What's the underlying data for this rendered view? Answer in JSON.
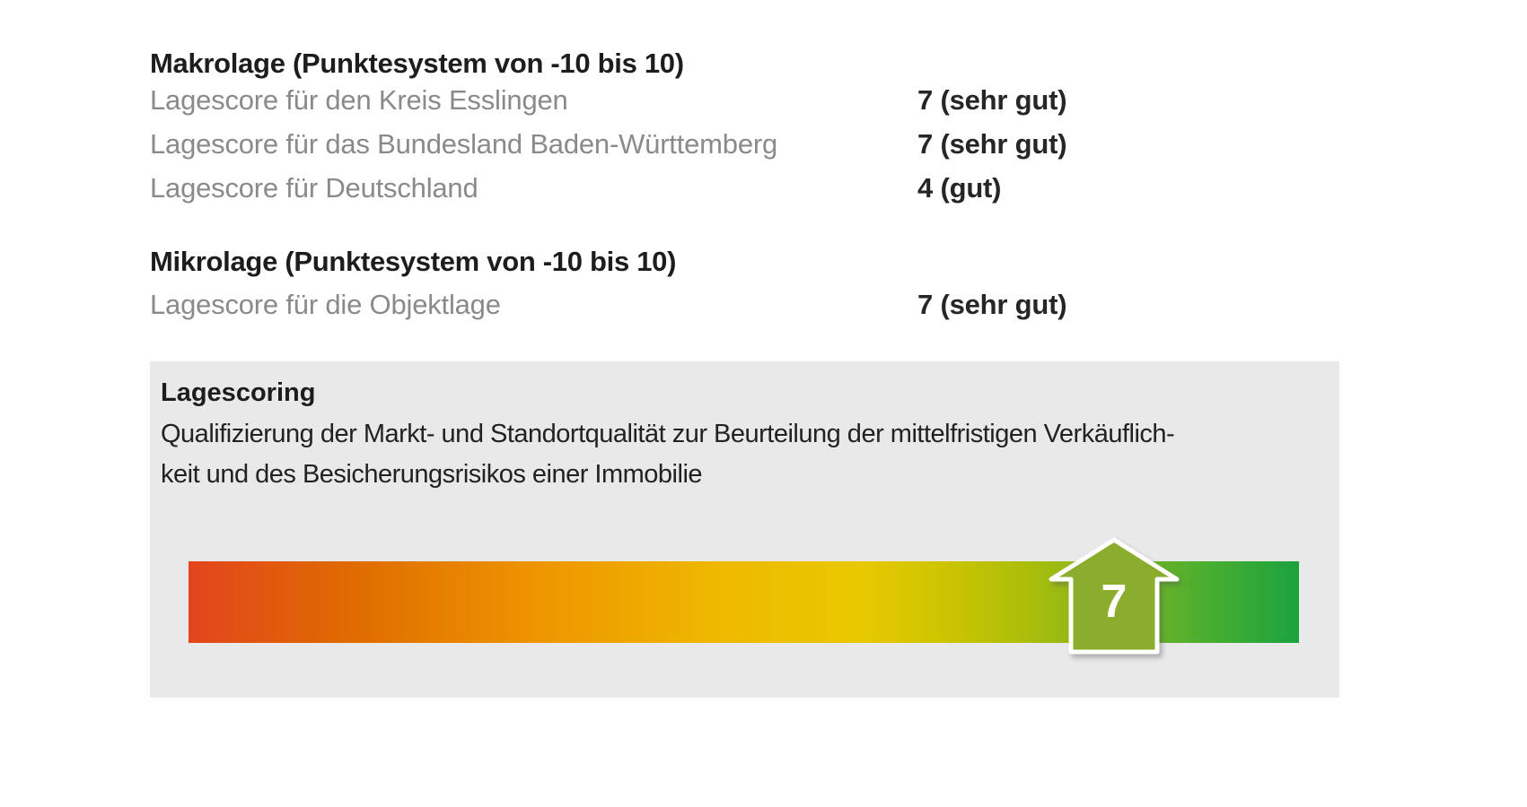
{
  "macro_section": {
    "heading": "Makrolage (Punktesystem von -10 bis 10)",
    "rows": [
      {
        "label": "Lagescore für den Kreis Esslingen",
        "value": "7 (sehr gut)"
      },
      {
        "label": "Lagescore für das Bundesland Baden-Württemberg",
        "value": "7 (sehr gut)"
      },
      {
        "label": "Lagescore für Deutschland",
        "value": "4 (gut)"
      }
    ]
  },
  "micro_section": {
    "heading": "Mikrolage (Punktesystem von -10 bis 10)",
    "rows": [
      {
        "label": "Lagescore für die Objektlage",
        "value": "7 (sehr gut)"
      }
    ]
  },
  "scoring_box": {
    "title": "Lagescoring",
    "description_line1": "Qualifizierung der Markt- und Standortqualität zur Beurteilung der mittelfristigen Verkäuflich-",
    "description_line2": "keit und des Besicherungsrisikos einer Immobilie",
    "background": "#e9e9e9"
  },
  "chart_data": {
    "type": "gauge",
    "title": "Lagescoring",
    "scale_min": -10,
    "scale_max": 10,
    "value": 7,
    "marker_label": "7",
    "marker_color": "#8aad2e",
    "marker_outline": "#ffffff",
    "gradient_stops": [
      "#e2451d 0%",
      "#e06c00 15%",
      "#ee9600 32%",
      "#eeb900 48%",
      "#e9c800 60%",
      "#cdc501 68%",
      "#a8bd0b 76%",
      "#7cb422 84%",
      "#47ae31 92%",
      "#1ca23e 100%"
    ]
  },
  "colors": {
    "label_gray": "#8a8a8a",
    "text_dark": "#1d1d1d",
    "box_background": "#e9e9e9"
  }
}
